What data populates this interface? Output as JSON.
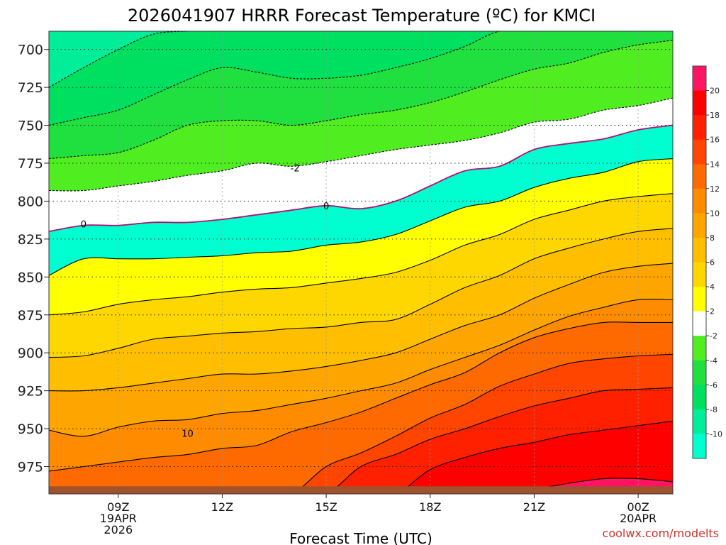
{
  "chart_data": {
    "type": "heatmap",
    "title": "2026041907 HRRR Forecast Temperature (ºC) for KMCI",
    "xlabel": "Forecast Time (UTC)",
    "ylabel": "",
    "credit": "coolwx.com/modelts",
    "x_range_hours": [
      7,
      25
    ],
    "y_range_hPa": [
      688,
      993
    ],
    "surface_pressure_hPa": 988,
    "x_ticks": [
      {
        "hour": 9,
        "lines": [
          "09Z",
          "19APR",
          "2026"
        ]
      },
      {
        "hour": 12,
        "lines": [
          "12Z"
        ]
      },
      {
        "hour": 15,
        "lines": [
          "15Z"
        ]
      },
      {
        "hour": 18,
        "lines": [
          "18Z"
        ]
      },
      {
        "hour": 21,
        "lines": [
          "21Z"
        ]
      },
      {
        "hour": 24,
        "lines": [
          "00Z",
          "20APR"
        ]
      }
    ],
    "y_ticks": [
      700,
      725,
      750,
      775,
      800,
      825,
      850,
      875,
      900,
      925,
      950,
      975
    ],
    "colorbar": {
      "levels": [
        -12,
        -10,
        -8,
        -6,
        -4,
        -2,
        2,
        4,
        6,
        8,
        10,
        12,
        14,
        16,
        18,
        20,
        22
      ],
      "tick_labels": [
        "-10",
        "-8",
        "-6",
        "-4",
        "-2",
        "2",
        "4",
        "6",
        "8",
        "10",
        "12",
        "14",
        "16",
        "18",
        "20"
      ],
      "tick_values": [
        -10,
        -8,
        -6,
        -4,
        -2,
        2,
        4,
        6,
        8,
        10,
        12,
        14,
        16,
        18,
        20
      ],
      "colors": [
        "#00ffd0",
        "#00ee99",
        "#00e060",
        "#20e040",
        "#50ee20",
        "#ffffff",
        "#ffff00",
        "#ffd700",
        "#ffbf00",
        "#ffa500",
        "#ff8c00",
        "#ff6a00",
        "#ff4500",
        "#ff2000",
        "#ff0000",
        "#ff1464"
      ]
    },
    "contour_labels": [
      {
        "text": "0",
        "hour": 8.0,
        "pressure": 815
      },
      {
        "text": "-2",
        "hour": 14.1,
        "pressure": 778
      },
      {
        "text": "0",
        "hour": 15.0,
        "pressure": 803
      },
      {
        "text": "10",
        "hour": 11.0,
        "pressure": 953
      }
    ],
    "hours": [
      7,
      8,
      9,
      10,
      11,
      12,
      13,
      14,
      15,
      16,
      17,
      18,
      19,
      20,
      21,
      22,
      23,
      24,
      25
    ],
    "isotherms": [
      {
        "value": -10,
        "pressures": [
          688,
          688,
          688,
          688,
          688,
          688,
          688,
          688,
          688,
          688,
          688,
          688,
          688,
          688,
          688,
          688,
          688,
          688,
          688
        ]
      },
      {
        "value": -8,
        "pressures": [
          725,
          712,
          700,
          690,
          688,
          688,
          688,
          688,
          688,
          688,
          688,
          688,
          688,
          688,
          688,
          688,
          688,
          688,
          688
        ]
      },
      {
        "value": -6,
        "pressures": [
          750,
          745,
          740,
          730,
          720,
          712,
          715,
          719,
          719,
          717,
          712,
          706,
          698,
          688,
          688,
          688,
          688,
          688,
          688
        ]
      },
      {
        "value": -4,
        "pressures": [
          772,
          770,
          768,
          760,
          750,
          747,
          747,
          750,
          747,
          743,
          740,
          735,
          728,
          720,
          713,
          709,
          702,
          697,
          694
        ]
      },
      {
        "value": -2,
        "pressures": [
          793,
          793,
          790,
          787,
          783,
          780,
          775,
          777,
          774,
          770,
          766,
          763,
          760,
          755,
          748,
          746,
          740,
          737,
          732
        ]
      },
      {
        "value": 0,
        "pressures": [
          820,
          816,
          816,
          814,
          814,
          812,
          809,
          806,
          803,
          805,
          800,
          790,
          780,
          777,
          766,
          762,
          759,
          753,
          750
        ]
      },
      {
        "value": 2,
        "pressures": [
          849,
          838,
          838,
          838,
          837,
          836,
          834,
          833,
          829,
          827,
          822,
          813,
          804,
          800,
          791,
          785,
          781,
          774,
          772
        ]
      },
      {
        "value": 4,
        "pressures": [
          875,
          873,
          868,
          865,
          863,
          860,
          858,
          857,
          854,
          851,
          847,
          839,
          829,
          822,
          812,
          806,
          800,
          797,
          795
        ]
      },
      {
        "value": 6,
        "pressures": [
          903,
          902,
          897,
          891,
          889,
          887,
          886,
          884,
          883,
          880,
          878,
          868,
          857,
          849,
          838,
          831,
          825,
          820,
          818
        ]
      },
      {
        "value": 8,
        "pressures": [
          925,
          925,
          923,
          920,
          917,
          914,
          914,
          912,
          909,
          905,
          900,
          891,
          882,
          875,
          864,
          855,
          847,
          843,
          841
        ]
      },
      {
        "value": 10,
        "pressures": [
          951,
          955,
          949,
          945,
          944,
          940,
          938,
          934,
          930,
          925,
          920,
          911,
          903,
          895,
          885,
          876,
          870,
          865,
          865
        ]
      },
      {
        "value": 12,
        "pressures": [
          978,
          975,
          972,
          969,
          967,
          963,
          961,
          952,
          946,
          939,
          930,
          921,
          913,
          900,
          890,
          884,
          880,
          880,
          880
        ]
      },
      {
        "value": 14,
        "pressures": [
          993,
          993,
          993,
          993,
          993,
          993,
          993,
          993,
          975,
          966,
          955,
          943,
          934,
          922,
          914,
          907,
          904,
          902,
          901
        ]
      },
      {
        "value": 16,
        "pressures": [
          993,
          993,
          993,
          993,
          993,
          993,
          993,
          993,
          993,
          975,
          967,
          957,
          950,
          942,
          935,
          930,
          925,
          924,
          923
        ]
      },
      {
        "value": 18,
        "pressures": [
          993,
          993,
          993,
          993,
          993,
          993,
          993,
          993,
          993,
          993,
          993,
          977,
          969,
          963,
          959,
          954,
          951,
          948,
          945
        ]
      },
      {
        "value": 20,
        "pressures": [
          993,
          993,
          993,
          993,
          993,
          993,
          993,
          993,
          993,
          993,
          993,
          993,
          993,
          993,
          990,
          986,
          983,
          983,
          985
        ]
      }
    ]
  }
}
